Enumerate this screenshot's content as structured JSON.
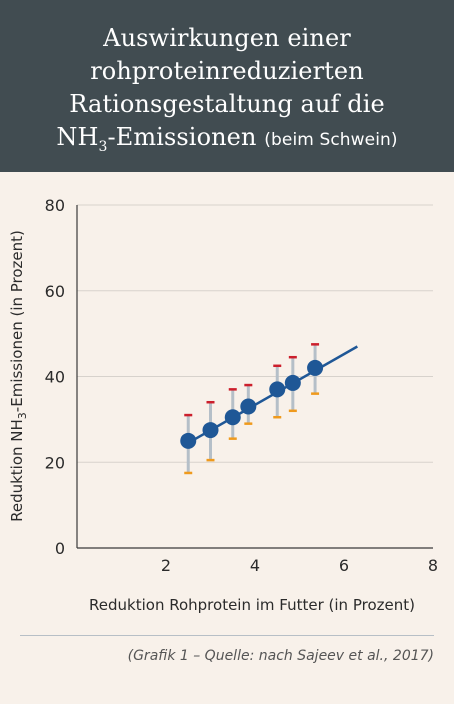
{
  "header": {
    "title_line1": "Auswirkungen einer",
    "title_line2": "rohproteinreduzierten",
    "title_line3": "Rationsgestaltung auf die",
    "title_line4_pre": "NH",
    "title_line4_sub": "3",
    "title_line4_post": "-Emissionen",
    "subtitle": "(beim Schwein)"
  },
  "chart_data": {
    "type": "scatter",
    "xlabel": "Reduktion Rohprotein im Futter (in Prozent)",
    "ylabel_pre": "Reduktion NH",
    "ylabel_sub": "3",
    "ylabel_post": "-Emissionen (in Prozent)",
    "xlim": [
      0,
      8
    ],
    "ylim": [
      0,
      80
    ],
    "x_ticks": [
      2,
      4,
      6,
      8
    ],
    "y_ticks": [
      0,
      20,
      40,
      60,
      80
    ],
    "grid": true,
    "points": [
      {
        "x": 2.5,
        "y": 25,
        "upper": 31,
        "lower": 17.5
      },
      {
        "x": 3.0,
        "y": 27.5,
        "upper": 34,
        "lower": 20.5
      },
      {
        "x": 3.5,
        "y": 30.5,
        "upper": 37,
        "lower": 25.5
      },
      {
        "x": 3.85,
        "y": 33,
        "upper": 38,
        "lower": 29
      },
      {
        "x": 4.5,
        "y": 37,
        "upper": 42.5,
        "lower": 30.5
      },
      {
        "x": 4.85,
        "y": 38.5,
        "upper": 44.5,
        "lower": 32
      },
      {
        "x": 5.35,
        "y": 42,
        "upper": 47.5,
        "lower": 36
      }
    ],
    "trendline": {
      "x_start": 2.5,
      "y_start": 24.5,
      "x_end": 6.3,
      "y_end": 47
    },
    "colors": {
      "point": "#1f5796",
      "line": "#1f5796",
      "errorbar": "#b5bfc8",
      "upper_cap": "#cc1f2c",
      "lower_cap": "#ef9a1d",
      "grid": "#d7d2cc",
      "axis": "#3a3a3a"
    }
  },
  "source": "(Grafik 1 – Quelle: nach Sajeev et al., 2017)"
}
